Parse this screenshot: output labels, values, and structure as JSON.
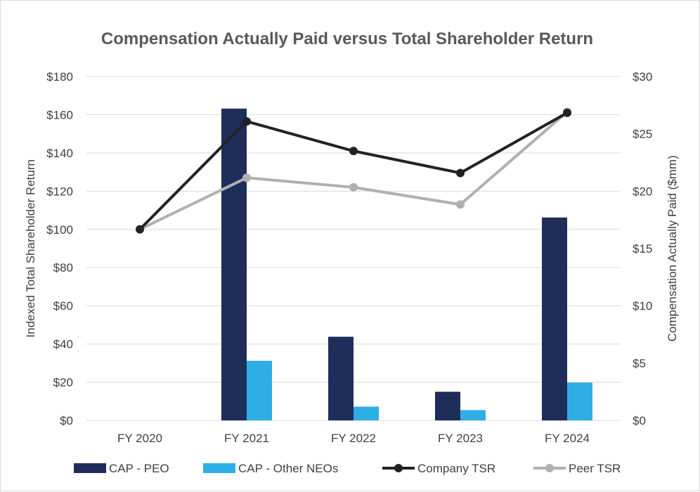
{
  "chart_data": {
    "type": "bar",
    "title": "Compensation Actually Paid versus Total Shareholder Return",
    "categories": [
      "FY 2020",
      "FY 2021",
      "FY 2022",
      "FY 2023",
      "FY 2024"
    ],
    "left_axis": {
      "label": "Indexed Total Shareholder Return",
      "ylim": [
        0,
        180
      ],
      "ticks": [
        0,
        20,
        40,
        60,
        80,
        100,
        120,
        140,
        160,
        180
      ],
      "tick_labels": [
        "$0",
        "$20",
        "$40",
        "$60",
        "$80",
        "$100",
        "$120",
        "$140",
        "$160",
        "$180"
      ]
    },
    "right_axis": {
      "label": "Compensation Actually Paid ($mm)",
      "ylim": [
        0,
        30
      ],
      "ticks": [
        0,
        5,
        10,
        15,
        20,
        25,
        30
      ],
      "tick_labels": [
        "$0",
        "$5",
        "$10",
        "$15",
        "$20",
        "$25",
        "$30"
      ]
    },
    "grid": true,
    "legend_position": "bottom",
    "series": [
      {
        "name": "CAP - PEO",
        "kind": "bar",
        "axis": "right",
        "color": "#1f2d5a",
        "values": [
          0,
          27.2,
          7.3,
          2.5,
          17.7
        ]
      },
      {
        "name": "CAP - Other NEOs",
        "kind": "bar",
        "axis": "right",
        "color": "#2eaee4",
        "values": [
          0,
          5.2,
          1.2,
          0.9,
          3.3
        ]
      },
      {
        "name": "Company TSR",
        "kind": "line",
        "axis": "left",
        "color": "#222222",
        "values": [
          100,
          156.5,
          141,
          129.5,
          161
        ]
      },
      {
        "name": "Peer TSR",
        "kind": "line",
        "axis": "left",
        "color": "#b0b0b0",
        "values": [
          100,
          127,
          122,
          113,
          161.5
        ]
      }
    ]
  }
}
